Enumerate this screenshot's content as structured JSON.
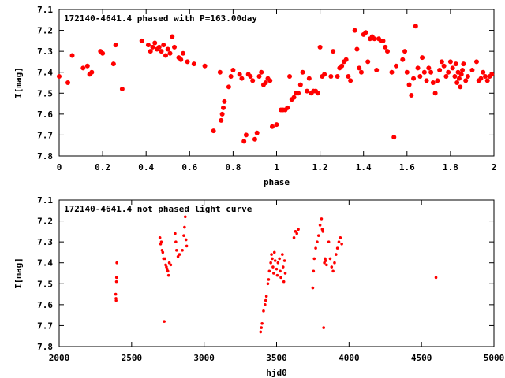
{
  "chart_data": [
    {
      "type": "scatter",
      "title": "172140-4641.4 phased with P=163.00day",
      "xlabel": "phase",
      "ylabel": "I[mag]",
      "xlim": [
        0,
        2
      ],
      "ylim": [
        7.1,
        7.8
      ],
      "y_inverted": true,
      "grid": false,
      "marker_color": "#ff0000",
      "xticks": [
        0,
        0.2,
        0.4,
        0.6,
        0.8,
        1,
        1.2,
        1.4,
        1.6,
        1.8,
        2
      ],
      "xtick_labels": [
        "0",
        "0.2",
        "0.4",
        "0.6",
        "0.8",
        "1",
        "1.2",
        "1.4",
        "1.6",
        "1.8",
        "2"
      ],
      "yticks": [
        7.1,
        7.2,
        7.3,
        7.4,
        7.5,
        7.6,
        7.7,
        7.8
      ],
      "ytick_labels": [
        "7.1",
        "7.2",
        "7.3",
        "7.4",
        "7.5",
        "7.6",
        "7.7",
        "7.8"
      ],
      "points": [
        [
          0.0,
          7.42
        ],
        [
          0.04,
          7.45
        ],
        [
          0.06,
          7.32
        ],
        [
          0.11,
          7.38
        ],
        [
          0.13,
          7.37
        ],
        [
          0.14,
          7.41
        ],
        [
          0.15,
          7.4
        ],
        [
          0.19,
          7.3
        ],
        [
          0.2,
          7.31
        ],
        [
          0.25,
          7.36
        ],
        [
          0.26,
          7.27
        ],
        [
          0.29,
          7.48
        ],
        [
          0.38,
          7.25
        ],
        [
          0.41,
          7.27
        ],
        [
          0.42,
          7.3
        ],
        [
          0.43,
          7.28
        ],
        [
          0.44,
          7.26
        ],
        [
          0.45,
          7.29
        ],
        [
          0.46,
          7.28
        ],
        [
          0.47,
          7.3
        ],
        [
          0.48,
          7.27
        ],
        [
          0.49,
          7.32
        ],
        [
          0.5,
          7.29
        ],
        [
          0.51,
          7.31
        ],
        [
          0.52,
          7.23
        ],
        [
          0.53,
          7.28
        ],
        [
          0.55,
          7.33
        ],
        [
          0.56,
          7.34
        ],
        [
          0.57,
          7.31
        ],
        [
          0.59,
          7.35
        ],
        [
          0.62,
          7.36
        ],
        [
          0.67,
          7.37
        ],
        [
          0.71,
          7.68
        ],
        [
          0.74,
          7.4
        ],
        [
          0.745,
          7.63
        ],
        [
          0.75,
          7.6
        ],
        [
          0.755,
          7.57
        ],
        [
          0.76,
          7.54
        ],
        [
          0.78,
          7.47
        ],
        [
          0.79,
          7.42
        ],
        [
          0.8,
          7.39
        ],
        [
          0.83,
          7.41
        ],
        [
          0.84,
          7.43
        ],
        [
          0.85,
          7.73
        ],
        [
          0.86,
          7.7
        ],
        [
          0.87,
          7.41
        ],
        [
          0.88,
          7.42
        ],
        [
          0.89,
          7.44
        ],
        [
          0.9,
          7.72
        ],
        [
          0.91,
          7.69
        ],
        [
          0.92,
          7.42
        ],
        [
          0.93,
          7.4
        ],
        [
          0.94,
          7.46
        ],
        [
          0.95,
          7.45
        ],
        [
          0.96,
          7.43
        ],
        [
          0.97,
          7.44
        ],
        [
          0.98,
          7.66
        ],
        [
          1.0,
          7.65
        ],
        [
          1.02,
          7.58
        ],
        [
          1.03,
          7.58
        ],
        [
          1.04,
          7.58
        ],
        [
          1.05,
          7.57
        ],
        [
          1.06,
          7.42
        ],
        [
          1.07,
          7.53
        ],
        [
          1.08,
          7.52
        ],
        [
          1.09,
          7.5
        ],
        [
          1.1,
          7.5
        ],
        [
          1.11,
          7.46
        ],
        [
          1.12,
          7.4
        ],
        [
          1.14,
          7.49
        ],
        [
          1.15,
          7.43
        ],
        [
          1.16,
          7.5
        ],
        [
          1.17,
          7.49
        ],
        [
          1.18,
          7.49
        ],
        [
          1.19,
          7.5
        ],
        [
          1.2,
          7.28
        ],
        [
          1.21,
          7.42
        ],
        [
          1.22,
          7.41
        ],
        [
          1.25,
          7.42
        ],
        [
          1.26,
          7.3
        ],
        [
          1.28,
          7.42
        ],
        [
          1.29,
          7.38
        ],
        [
          1.3,
          7.37
        ],
        [
          1.31,
          7.35
        ],
        [
          1.32,
          7.34
        ],
        [
          1.33,
          7.42
        ],
        [
          1.34,
          7.44
        ],
        [
          1.36,
          7.2
        ],
        [
          1.37,
          7.29
        ],
        [
          1.38,
          7.38
        ],
        [
          1.39,
          7.4
        ],
        [
          1.4,
          7.22
        ],
        [
          1.41,
          7.21
        ],
        [
          1.42,
          7.35
        ],
        [
          1.43,
          7.24
        ],
        [
          1.44,
          7.23
        ],
        [
          1.45,
          7.24
        ],
        [
          1.46,
          7.39
        ],
        [
          1.47,
          7.24
        ],
        [
          1.48,
          7.25
        ],
        [
          1.49,
          7.25
        ],
        [
          1.5,
          7.28
        ],
        [
          1.51,
          7.3
        ],
        [
          1.53,
          7.4
        ],
        [
          1.54,
          7.71
        ],
        [
          1.55,
          7.37
        ],
        [
          1.58,
          7.34
        ],
        [
          1.59,
          7.3
        ],
        [
          1.6,
          7.4
        ],
        [
          1.61,
          7.46
        ],
        [
          1.62,
          7.51
        ],
        [
          1.63,
          7.43
        ],
        [
          1.64,
          7.18
        ],
        [
          1.65,
          7.38
        ],
        [
          1.66,
          7.42
        ],
        [
          1.67,
          7.33
        ],
        [
          1.68,
          7.4
        ],
        [
          1.69,
          7.44
        ],
        [
          1.7,
          7.38
        ],
        [
          1.71,
          7.4
        ],
        [
          1.72,
          7.45
        ],
        [
          1.73,
          7.5
        ],
        [
          1.74,
          7.44
        ],
        [
          1.75,
          7.39
        ],
        [
          1.76,
          7.35
        ],
        [
          1.77,
          7.37
        ],
        [
          1.78,
          7.42
        ],
        [
          1.79,
          7.4
        ],
        [
          1.8,
          7.35
        ],
        [
          1.81,
          7.38
        ],
        [
          1.82,
          7.42
        ],
        [
          1.825,
          7.36
        ],
        [
          1.83,
          7.45
        ],
        [
          1.835,
          7.4
        ],
        [
          1.84,
          7.43
        ],
        [
          1.845,
          7.47
        ],
        [
          1.85,
          7.41
        ],
        [
          1.855,
          7.39
        ],
        [
          1.86,
          7.36
        ],
        [
          1.87,
          7.44
        ],
        [
          1.88,
          7.42
        ],
        [
          1.9,
          7.39
        ],
        [
          1.92,
          7.35
        ],
        [
          1.93,
          7.44
        ],
        [
          1.94,
          7.43
        ],
        [
          1.95,
          7.4
        ],
        [
          1.96,
          7.42
        ],
        [
          1.97,
          7.44
        ],
        [
          1.98,
          7.42
        ],
        [
          1.99,
          7.41
        ]
      ]
    },
    {
      "type": "scatter",
      "title": "172140-4641.4 not phased light curve",
      "xlabel": "hjd0",
      "ylabel": "I[mag]",
      "xlim": [
        2000,
        5000
      ],
      "ylim": [
        7.1,
        7.8
      ],
      "y_inverted": true,
      "grid": false,
      "marker_color": "#ff0000",
      "xticks": [
        2000,
        2500,
        3000,
        3500,
        4000,
        4500,
        5000
      ],
      "xtick_labels": [
        "2000",
        "2500",
        "3000",
        "3500",
        "4000",
        "4500",
        "5000"
      ],
      "yticks": [
        7.1,
        7.2,
        7.3,
        7.4,
        7.5,
        7.6,
        7.7,
        7.8
      ],
      "ytick_labels": [
        "7.1",
        "7.2",
        "7.3",
        "7.4",
        "7.5",
        "7.6",
        "7.7",
        "7.8"
      ],
      "points": [
        [
          2390,
          7.55
        ],
        [
          2392,
          7.57
        ],
        [
          2393,
          7.58
        ],
        [
          2395,
          7.49
        ],
        [
          2396,
          7.47
        ],
        [
          2398,
          7.4
        ],
        [
          2695,
          7.28
        ],
        [
          2700,
          7.31
        ],
        [
          2705,
          7.3
        ],
        [
          2710,
          7.34
        ],
        [
          2715,
          7.35
        ],
        [
          2720,
          7.38
        ],
        [
          2725,
          7.68
        ],
        [
          2730,
          7.38
        ],
        [
          2735,
          7.41
        ],
        [
          2740,
          7.42
        ],
        [
          2745,
          7.43
        ],
        [
          2750,
          7.44
        ],
        [
          2755,
          7.46
        ],
        [
          2760,
          7.4
        ],
        [
          2770,
          7.41
        ],
        [
          2800,
          7.26
        ],
        [
          2805,
          7.3
        ],
        [
          2810,
          7.34
        ],
        [
          2820,
          7.37
        ],
        [
          2830,
          7.36
        ],
        [
          2850,
          7.34
        ],
        [
          2860,
          7.27
        ],
        [
          2865,
          7.23
        ],
        [
          2870,
          7.18
        ],
        [
          2875,
          7.29
        ],
        [
          2880,
          7.32
        ],
        [
          3390,
          7.73
        ],
        [
          3395,
          7.71
        ],
        [
          3400,
          7.69
        ],
        [
          3410,
          7.63
        ],
        [
          3420,
          7.6
        ],
        [
          3425,
          7.58
        ],
        [
          3430,
          7.56
        ],
        [
          3440,
          7.5
        ],
        [
          3445,
          7.48
        ],
        [
          3450,
          7.44
        ],
        [
          3460,
          7.4
        ],
        [
          3465,
          7.36
        ],
        [
          3470,
          7.38
        ],
        [
          3475,
          7.42
        ],
        [
          3480,
          7.45
        ],
        [
          3485,
          7.35
        ],
        [
          3490,
          7.39
        ],
        [
          3500,
          7.43
        ],
        [
          3505,
          7.46
        ],
        [
          3510,
          7.4
        ],
        [
          3520,
          7.38
        ],
        [
          3525,
          7.44
        ],
        [
          3530,
          7.47
        ],
        [
          3540,
          7.36
        ],
        [
          3545,
          7.42
        ],
        [
          3550,
          7.49
        ],
        [
          3555,
          7.39
        ],
        [
          3560,
          7.45
        ],
        [
          3620,
          7.28
        ],
        [
          3630,
          7.25
        ],
        [
          3640,
          7.26
        ],
        [
          3650,
          7.24
        ],
        [
          3750,
          7.52
        ],
        [
          3755,
          7.44
        ],
        [
          3760,
          7.38
        ],
        [
          3770,
          7.33
        ],
        [
          3780,
          7.3
        ],
        [
          3790,
          7.27
        ],
        [
          3800,
          7.22
        ],
        [
          3810,
          7.19
        ],
        [
          3815,
          7.24
        ],
        [
          3820,
          7.25
        ],
        [
          3825,
          7.71
        ],
        [
          3830,
          7.4
        ],
        [
          3835,
          7.38
        ],
        [
          3840,
          7.39
        ],
        [
          3845,
          7.41
        ],
        [
          3860,
          7.3
        ],
        [
          3870,
          7.38
        ],
        [
          3880,
          7.42
        ],
        [
          3890,
          7.44
        ],
        [
          3900,
          7.4
        ],
        [
          3910,
          7.36
        ],
        [
          3920,
          7.33
        ],
        [
          3930,
          7.3
        ],
        [
          3940,
          7.28
        ],
        [
          3950,
          7.31
        ],
        [
          4600,
          7.47
        ]
      ]
    }
  ]
}
